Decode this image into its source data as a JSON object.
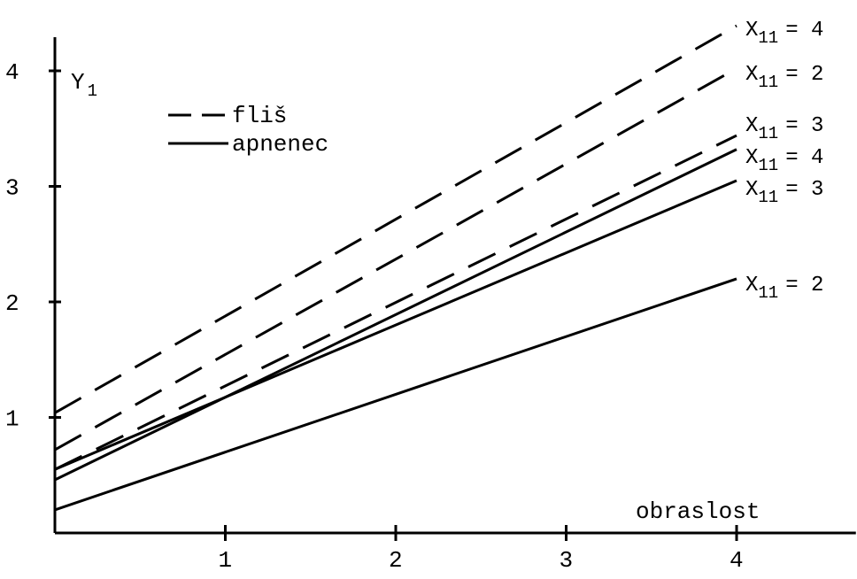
{
  "chart_data": {
    "type": "line",
    "ylabel": "Y",
    "ylabel_sub": "1",
    "xlabel": "obraslost",
    "xlim": [
      0,
      4.7
    ],
    "ylim": [
      0,
      4.2
    ],
    "xticks": [
      1,
      2,
      3,
      4
    ],
    "yticks": [
      1,
      2,
      3,
      4
    ],
    "legend": {
      "placement": "top-left",
      "items": [
        {
          "label": "fliš",
          "style": "dashed"
        },
        {
          "label": "apnenec",
          "style": "solid"
        }
      ]
    },
    "series": [
      {
        "group": "fliš",
        "style": "dashed",
        "label_var": "X",
        "label_sub": "11",
        "label_eq": "= 4",
        "x": [
          0,
          4
        ],
        "y": [
          1.04,
          4.39
        ]
      },
      {
        "group": "fliš",
        "style": "dashed",
        "label_var": "X",
        "label_sub": "11",
        "label_eq": "= 2",
        "x": [
          0,
          4
        ],
        "y": [
          0.72,
          4.02
        ]
      },
      {
        "group": "fliš",
        "style": "dashed",
        "label_var": "X",
        "label_sub": "11",
        "label_eq": "= 3",
        "x": [
          0,
          4
        ],
        "y": [
          0.55,
          3.44
        ]
      },
      {
        "group": "apnenec",
        "style": "solid",
        "label_var": "X",
        "label_sub": "11",
        "label_eq": "= 4",
        "x": [
          0,
          4
        ],
        "y": [
          0.46,
          3.32
        ]
      },
      {
        "group": "apnenec",
        "style": "solid",
        "label_var": "X",
        "label_sub": "11",
        "label_eq": "= 3",
        "x": [
          0,
          4
        ],
        "y": [
          0.55,
          3.05
        ]
      },
      {
        "group": "apnenec",
        "style": "solid",
        "label_var": "X",
        "label_sub": "11",
        "label_eq": "= 2",
        "x": [
          0,
          4
        ],
        "y": [
          0.2,
          2.2
        ]
      }
    ]
  }
}
